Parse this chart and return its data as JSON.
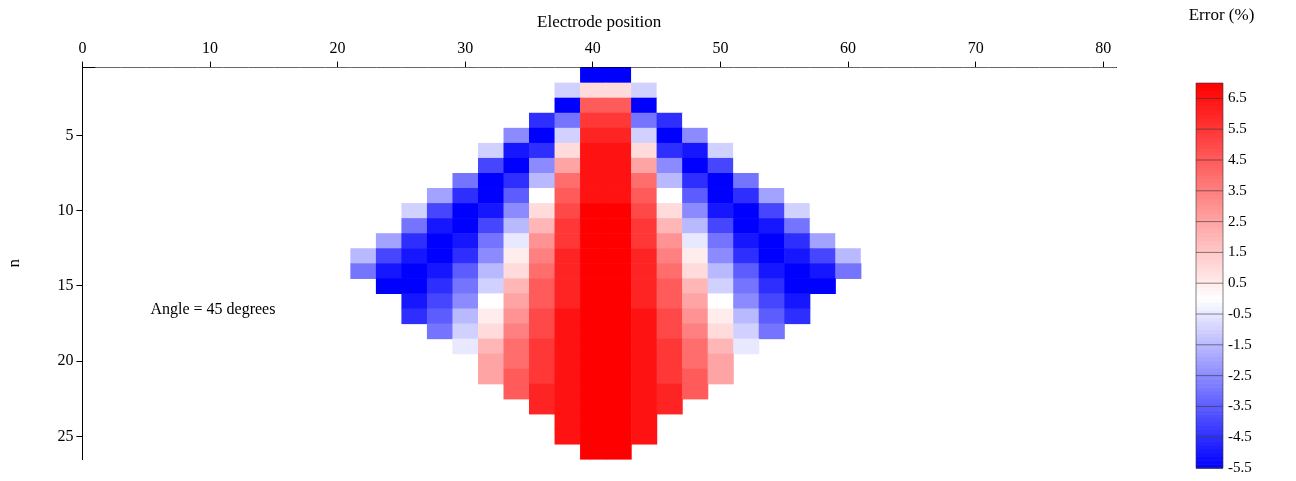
{
  "chart_data": {
    "type": "heatmap",
    "xlabel": "Electrode position",
    "ylabel": "n",
    "clabel": "Error (%)",
    "annotations": [
      "Angle = 45 degrees"
    ],
    "x": [
      2,
      4,
      6,
      8,
      10,
      12,
      14,
      16,
      18,
      20,
      22,
      24,
      26,
      28,
      30,
      32,
      34,
      36,
      38,
      40,
      42,
      44,
      46,
      48,
      50,
      52,
      54,
      56,
      58,
      60,
      62,
      64,
      66,
      68,
      70,
      72,
      74,
      76,
      78,
      80
    ],
    "xlim": [
      0,
      81
    ],
    "xticks": [
      0,
      10,
      20,
      30,
      40,
      50,
      60,
      70,
      80
    ],
    "ylim": [
      26.5,
      0.5
    ],
    "yticks": [
      5,
      10,
      15,
      20,
      25
    ],
    "clim": [
      -5.5,
      7
    ],
    "cticks": [
      -5.5,
      -4.5,
      -3.5,
      -2.5,
      -1.5,
      -0.5,
      0.5,
      1.5,
      2.5,
      3.5,
      4.5,
      5.5,
      6.5
    ],
    "colors": [
      "#0000ff",
      "#ffffff",
      "#ff0000"
    ],
    "cells": [
      [
        0,
        0,
        0,
        0,
        0,
        0,
        0,
        0,
        0,
        0,
        0,
        0,
        0,
        0,
        0,
        0,
        0,
        0,
        0,
        -5.5,
        -5.5,
        0,
        0,
        0,
        0,
        0,
        0,
        0,
        0,
        0,
        0,
        0,
        0,
        0,
        0,
        0,
        0,
        0,
        0,
        0
      ],
      [
        null,
        0,
        0,
        0,
        0,
        0,
        0,
        0,
        0,
        0,
        0,
        0,
        0,
        0,
        0,
        0,
        0,
        0,
        -1,
        1,
        1,
        -1,
        0,
        0,
        0,
        0,
        0,
        0,
        0,
        0,
        0,
        0,
        0,
        0,
        0,
        0,
        0,
        0,
        0,
        null
      ],
      [
        null,
        null,
        0,
        0,
        0,
        0,
        0,
        0,
        0,
        0,
        0,
        0,
        0,
        0,
        0,
        0,
        0,
        0,
        -5.5,
        4.5,
        4.5,
        -5.5,
        0,
        0,
        0,
        0,
        0,
        0,
        0,
        0,
        0,
        0,
        0,
        0,
        0,
        0,
        0,
        0,
        null,
        null
      ],
      [
        null,
        null,
        null,
        0,
        0,
        0,
        0,
        0,
        0,
        0,
        0,
        0,
        0,
        0,
        0,
        0,
        0,
        -4.5,
        -3,
        5.5,
        5.5,
        -3,
        -4.5,
        0,
        0,
        0,
        0,
        0,
        0,
        0,
        0,
        0,
        0,
        0,
        0,
        0,
        0,
        null,
        null,
        null
      ],
      [
        null,
        null,
        null,
        0,
        0,
        0,
        0,
        0,
        0,
        0,
        0,
        0,
        0,
        0,
        0,
        0,
        -2.5,
        -5.5,
        -1,
        6,
        6,
        -1,
        -5.5,
        -2.5,
        0,
        0,
        0,
        0,
        0,
        0,
        0,
        0,
        0,
        0,
        0,
        0,
        0,
        null,
        null,
        null
      ],
      [
        null,
        null,
        null,
        null,
        0,
        0,
        0,
        0,
        0,
        0,
        0,
        0,
        0,
        0,
        0,
        -1,
        -5,
        -4.5,
        1,
        6.5,
        6.5,
        1,
        -4.5,
        -5,
        -1,
        0,
        0,
        0,
        0,
        0,
        0,
        0,
        0,
        0,
        0,
        0,
        null,
        null,
        null,
        null
      ],
      [
        null,
        null,
        null,
        null,
        null,
        0,
        0,
        0,
        0,
        0,
        0,
        0,
        0,
        0,
        0,
        -4,
        -5.5,
        -2.5,
        2.5,
        6.5,
        6.5,
        2.5,
        -2.5,
        -5.5,
        -4,
        0,
        0,
        0,
        0,
        0,
        0,
        0,
        0,
        0,
        0,
        null,
        null,
        null,
        null,
        null
      ],
      [
        null,
        null,
        null,
        null,
        null,
        null,
        0,
        0,
        0,
        0,
        0,
        0,
        0,
        0,
        -3,
        -5.5,
        -4.5,
        -1.5,
        4,
        6.5,
        6.5,
        4,
        -1.5,
        -4.5,
        -5.5,
        -3,
        0,
        0,
        0,
        0,
        0,
        0,
        0,
        0,
        null,
        null,
        null,
        null,
        null,
        null
      ],
      [
        null,
        null,
        null,
        null,
        null,
        null,
        0,
        0,
        0,
        0,
        0,
        0,
        0,
        -2,
        -4.5,
        -5.5,
        -3.5,
        0,
        4.5,
        6.5,
        6.5,
        4.5,
        0,
        -3.5,
        -5.5,
        -4.5,
        -2,
        0,
        0,
        0,
        0,
        0,
        0,
        0,
        null,
        null,
        null,
        null,
        null,
        null
      ],
      [
        null,
        null,
        null,
        null,
        null,
        null,
        null,
        0,
        0,
        0,
        0,
        0,
        -1,
        -4,
        -5.5,
        -5,
        -2.5,
        1,
        5,
        7,
        7,
        5,
        1,
        -2.5,
        -5,
        -5.5,
        -4,
        -1,
        0,
        0,
        0,
        0,
        0,
        null,
        null,
        null,
        null,
        null,
        null,
        null
      ],
      [
        null,
        null,
        null,
        null,
        null,
        null,
        null,
        null,
        0,
        0,
        0,
        0,
        -3,
        -5,
        -5.5,
        -4,
        -1.5,
        2,
        5.5,
        7,
        7,
        5.5,
        2,
        -1.5,
        -4,
        -5.5,
        -5,
        -3,
        0,
        0,
        0,
        0,
        null,
        null,
        null,
        null,
        null,
        null,
        null,
        null
      ],
      [
        null,
        null,
        null,
        null,
        null,
        null,
        null,
        null,
        null,
        0,
        0,
        -2,
        -4.5,
        -5.5,
        -5,
        -3,
        -0.5,
        3,
        5.5,
        7,
        7,
        5.5,
        3,
        -0.5,
        -3,
        -5,
        -5.5,
        -4.5,
        -2,
        0,
        0,
        null,
        null,
        null,
        null,
        null,
        null,
        null,
        null,
        null
      ],
      [
        null,
        null,
        null,
        null,
        null,
        null,
        null,
        null,
        null,
        0,
        -1.5,
        -4,
        -5,
        -5.5,
        -4.5,
        -2.5,
        0.5,
        3.5,
        6,
        7,
        7,
        6,
        3.5,
        0.5,
        -2.5,
        -4.5,
        -5.5,
        -5,
        -4,
        -1.5,
        0,
        null,
        null,
        null,
        null,
        null,
        null,
        null,
        null,
        null
      ],
      [
        null,
        null,
        null,
        null,
        null,
        null,
        null,
        null,
        null,
        null,
        -3,
        -5,
        -5.5,
        -5,
        -3.5,
        -1.5,
        1,
        4,
        6,
        7,
        7,
        6,
        4,
        1,
        -1.5,
        -3.5,
        -5,
        -5.5,
        -5,
        -3,
        null,
        null,
        null,
        null,
        null,
        null,
        null,
        null,
        null,
        null
      ],
      [
        null,
        null,
        null,
        null,
        null,
        null,
        null,
        null,
        null,
        null,
        null,
        -5.5,
        -5.5,
        -4.5,
        -3,
        -1,
        2,
        4.5,
        6,
        7,
        7,
        6,
        4.5,
        2,
        -1,
        -3,
        -4.5,
        -5.5,
        -5.5,
        null,
        null,
        null,
        null,
        null,
        null,
        null,
        null,
        null,
        null,
        null
      ],
      [
        null,
        null,
        null,
        null,
        null,
        null,
        null,
        null,
        null,
        null,
        null,
        null,
        -5,
        -4,
        -2.5,
        0,
        2.5,
        4.5,
        6,
        7,
        7,
        6,
        4.5,
        2.5,
        0,
        -2.5,
        -4,
        -5,
        null,
        null,
        null,
        null,
        null,
        null,
        null,
        null,
        null,
        null,
        null,
        null
      ],
      [
        null,
        null,
        null,
        null,
        null,
        null,
        null,
        null,
        null,
        null,
        null,
        null,
        -4.5,
        -3.5,
        -1.5,
        0.5,
        3,
        5,
        6.5,
        7,
        7,
        6.5,
        5,
        3,
        0.5,
        -1.5,
        -3.5,
        -4.5,
        null,
        null,
        null,
        null,
        null,
        null,
        null,
        null,
        null,
        null,
        null,
        null
      ],
      [
        null,
        null,
        null,
        null,
        null,
        null,
        null,
        null,
        null,
        null,
        null,
        null,
        null,
        -3,
        -1,
        1,
        3.5,
        5,
        6.5,
        7,
        7,
        6.5,
        5,
        3.5,
        1,
        -1,
        -3,
        null,
        null,
        null,
        null,
        null,
        null,
        null,
        null,
        null,
        null,
        null,
        null,
        null
      ],
      [
        null,
        null,
        null,
        null,
        null,
        null,
        null,
        null,
        null,
        null,
        null,
        null,
        null,
        null,
        -0.5,
        2,
        4,
        5.5,
        6.5,
        7,
        7,
        6.5,
        5.5,
        4,
        2,
        -0.5,
        null,
        null,
        null,
        null,
        null,
        null,
        null,
        null,
        null,
        null,
        null,
        null,
        null,
        null
      ],
      [
        null,
        null,
        null,
        null,
        null,
        null,
        null,
        null,
        null,
        null,
        null,
        null,
        null,
        null,
        null,
        2.5,
        4,
        5.5,
        6.5,
        7,
        7,
        6.5,
        5.5,
        4,
        2.5,
        null,
        null,
        null,
        null,
        null,
        null,
        null,
        null,
        null,
        null,
        null,
        null,
        null,
        null,
        null
      ],
      [
        null,
        null,
        null,
        null,
        null,
        null,
        null,
        null,
        null,
        null,
        null,
        null,
        null,
        null,
        null,
        2.5,
        4.5,
        5.5,
        6.5,
        7,
        7,
        6.5,
        5.5,
        4.5,
        2.5,
        null,
        null,
        null,
        null,
        null,
        null,
        null,
        null,
        null,
        null,
        null,
        null,
        null,
        null,
        null
      ],
      [
        null,
        null,
        null,
        null,
        null,
        null,
        null,
        null,
        null,
        null,
        null,
        null,
        null,
        null,
        null,
        null,
        4.5,
        6,
        6.5,
        7,
        7,
        6.5,
        6,
        4.5,
        null,
        null,
        null,
        null,
        null,
        null,
        null,
        null,
        null,
        null,
        null,
        null,
        null,
        null,
        null,
        null
      ],
      [
        null,
        null,
        null,
        null,
        null,
        null,
        null,
        null,
        null,
        null,
        null,
        null,
        null,
        null,
        null,
        null,
        null,
        6,
        6.5,
        7,
        7,
        6.5,
        6,
        null,
        null,
        null,
        null,
        null,
        null,
        null,
        null,
        null,
        null,
        null,
        null,
        null,
        null,
        null,
        null,
        null
      ],
      [
        null,
        null,
        null,
        null,
        null,
        null,
        null,
        null,
        null,
        null,
        null,
        null,
        null,
        null,
        null,
        null,
        null,
        null,
        6.5,
        7,
        7,
        6.5,
        null,
        null,
        null,
        null,
        null,
        null,
        null,
        null,
        null,
        null,
        null,
        null,
        null,
        null,
        null,
        null,
        null,
        null
      ],
      [
        null,
        null,
        null,
        null,
        null,
        null,
        null,
        null,
        null,
        null,
        null,
        null,
        null,
        null,
        null,
        null,
        null,
        null,
        6.5,
        7,
        7,
        6.5,
        null,
        null,
        null,
        null,
        null,
        null,
        null,
        null,
        null,
        null,
        null,
        null,
        null,
        null,
        null,
        null,
        null,
        null
      ],
      [
        null,
        null,
        null,
        null,
        null,
        null,
        null,
        null,
        null,
        null,
        null,
        null,
        null,
        null,
        null,
        null,
        null,
        null,
        null,
        7,
        7,
        null,
        null,
        null,
        null,
        null,
        null,
        null,
        null,
        null,
        null,
        null,
        null,
        null,
        null,
        null,
        null,
        null,
        null,
        null
      ]
    ]
  }
}
